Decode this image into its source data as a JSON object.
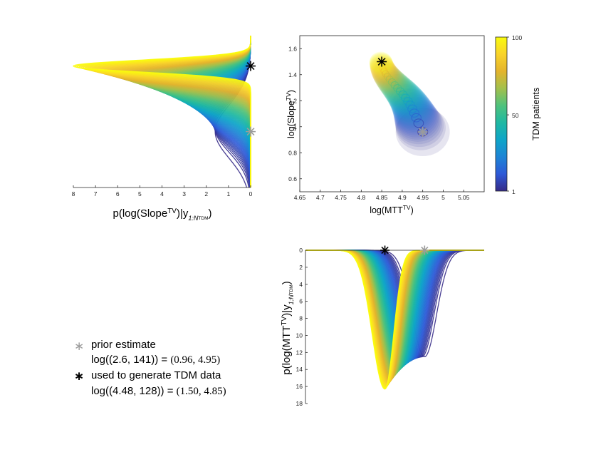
{
  "colors": {
    "parula": [
      "#352a87",
      "#2d59d7",
      "#1d84d5",
      "#0ea5c8",
      "#1fb8a2",
      "#4fc27c",
      "#a2c04c",
      "#e4b42c",
      "#f9d32a",
      "#f9fb0e"
    ],
    "black_star": "#000000",
    "gray_star": "#9b9b9b"
  },
  "legend": {
    "prior_symbol": "∗",
    "prior_label": "prior estimate",
    "prior_math_lhs": "log((2.6, 141)) = ",
    "prior_math_rhs": "(0.96, 4.95)",
    "tdm_symbol": "∗",
    "tdm_label": "used to generate TDM data",
    "tdm_math_lhs": "log((4.48, 128)) = ",
    "tdm_math_rhs": "(1.50, 4.85)"
  },
  "chart_data": [
    {
      "id": "slope_density",
      "type": "line",
      "orientation": "horizontal-density",
      "xlabel_main": "p(log(Slope",
      "xlabel_sup": "TV",
      "xlabel_mid": ")|y",
      "xlabel_sub": "1:N",
      "xlabel_subsub": "TDM",
      "xlabel_end": ")",
      "xlim": [
        8,
        0
      ],
      "x_ticks": [
        "8",
        "7",
        "6",
        "5",
        "4",
        "3",
        "2",
        "1",
        "0"
      ],
      "y_range": [
        0.5,
        1.75
      ],
      "series_count": 100,
      "prior_peak": {
        "y": 0.96,
        "density": 1.6
      },
      "tdm_peak": {
        "y": 1.5,
        "density": 8.0
      },
      "markers": [
        {
          "kind": "black_star",
          "x": 0,
          "y": 1.5
        },
        {
          "kind": "gray_star",
          "x": 0,
          "y": 0.96
        }
      ]
    },
    {
      "id": "joint_scatter",
      "type": "scatter",
      "xlabel_main": "log(MTT",
      "xlabel_sup": "TV",
      "xlabel_end": ")",
      "ylabel_main": "log(Slope",
      "ylabel_sup": "TV",
      "ylabel_end": ")",
      "xlim": [
        4.65,
        5.1
      ],
      "ylim": [
        0.5,
        1.7
      ],
      "x_ticks": [
        "4.65",
        "4.7",
        "4.75",
        "4.8",
        "4.85",
        "4.9",
        "4.95",
        "5",
        "5.05"
      ],
      "x_tick_values": [
        4.65,
        4.7,
        4.75,
        4.8,
        4.85,
        4.9,
        4.95,
        5.0,
        5.05
      ],
      "y_ticks": [
        "0.6",
        "0.8",
        "1",
        "1.2",
        "1.4",
        "1.6"
      ],
      "y_tick_values": [
        0.6,
        0.8,
        1.0,
        1.2,
        1.4,
        1.6
      ],
      "trajectory_start": {
        "x": 4.95,
        "y": 0.96
      },
      "trajectory_end": {
        "x": 4.85,
        "y": 1.5
      },
      "markers": [
        {
          "kind": "black_star",
          "x": 4.85,
          "y": 1.5
        },
        {
          "kind": "gray_star",
          "x": 4.95,
          "y": 0.96
        }
      ],
      "colorbar": {
        "label": "TDM patients",
        "range": [
          1,
          100
        ],
        "ticks": [
          "100",
          "50",
          "1"
        ],
        "tick_values": [
          100,
          50,
          1
        ]
      }
    },
    {
      "id": "mtt_density",
      "type": "line",
      "orientation": "inverted-density",
      "ylabel_main": "p(log(MTT",
      "ylabel_sup": "TV",
      "ylabel_mid": ")|y",
      "ylabel_sub": "1:N",
      "ylabel_subsub": "TDM",
      "ylabel_end": ")",
      "xlim": [
        4.65,
        5.1
      ],
      "ylim": [
        0,
        18
      ],
      "y_ticks": [
        "0",
        "2",
        "4",
        "6",
        "8",
        "10",
        "12",
        "14",
        "16",
        "18"
      ],
      "y_tick_values": [
        0,
        2,
        4,
        6,
        8,
        10,
        12,
        14,
        16,
        18
      ],
      "series_count": 100,
      "prior_peak": {
        "x": 4.95,
        "density": 12.5
      },
      "tdm_peak": {
        "x": 4.85,
        "density": 16.3
      },
      "markers": [
        {
          "kind": "black_star",
          "x": 4.85,
          "y": 0
        },
        {
          "kind": "gray_star",
          "x": 4.95,
          "y": 0
        }
      ]
    }
  ]
}
